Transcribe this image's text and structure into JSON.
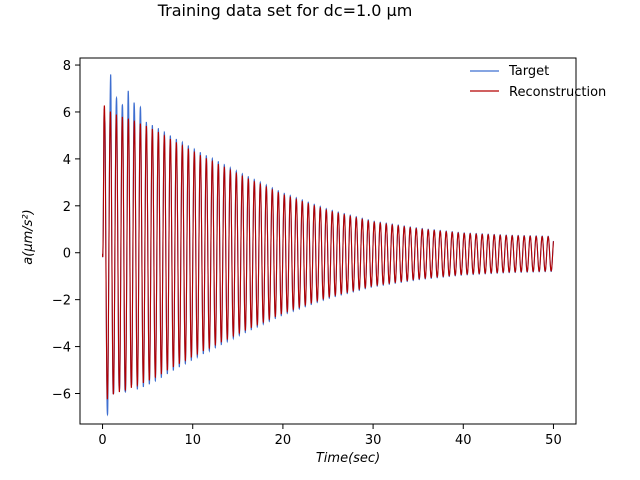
{
  "chart_data": {
    "type": "line",
    "title": "Training data set for dc=1.0 μm",
    "xlabel": "Time(sec)",
    "ylabel": "a(μm/s²)",
    "xlim": [
      -2.5,
      52.5
    ],
    "ylim": [
      -7.3,
      8.3
    ],
    "xticks": [
      0,
      10,
      20,
      30,
      40,
      50
    ],
    "yticks": [
      -6,
      -4,
      -2,
      0,
      2,
      4,
      6,
      8
    ],
    "grid": false,
    "legend": "top-right",
    "oscillation": {
      "t_start": 0,
      "t_end": 50,
      "period": 0.665,
      "envelope": {
        "t": [
          0,
          1,
          5,
          10,
          15,
          20,
          25,
          30,
          35,
          40,
          45,
          50
        ],
        "amplitude": [
          6.6,
          6.2,
          5.6,
          4.5,
          3.5,
          2.6,
          1.9,
          1.4,
          1.1,
          0.9,
          0.8,
          0.75
        ]
      }
    },
    "series": [
      {
        "name": "Target",
        "color": "#3f6fd0",
        "peaks": {
          "t": [
            0.25,
            0.9,
            1.55,
            2.2,
            2.85,
            3.5,
            4.2
          ],
          "max": [
            5.6,
            7.6,
            6.6,
            6.3,
            6.9,
            6.4,
            6.2
          ]
        },
        "troughs": {
          "t": [
            0.55,
            1.2,
            1.85,
            2.5,
            3.2
          ],
          "min": [
            -6.9,
            -6.0,
            -5.7,
            -5.9,
            -5.6
          ]
        }
      },
      {
        "name": "Reconstruction",
        "color": "#b30000"
      }
    ]
  }
}
